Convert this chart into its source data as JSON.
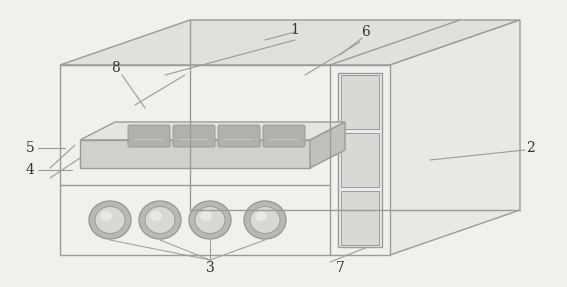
{
  "bg_color": "#f0f0ec",
  "line_color": "#9a9a9a",
  "line_width": 1.0,
  "face_color": "#f0f0ec",
  "top_color": "#e0e0dc",
  "right_color": "#e8e8e4",
  "panel_color": "#ebebeb",
  "shelf_color": "#d8d8d4",
  "tray_top_color": "#e4e4e0",
  "tray_front_color": "#d0d0cc",
  "tray_right_color": "#c0c0bc",
  "dish_color": "#b0b0ac",
  "knob_outer_color": "#c0c0bc",
  "knob_inner_color": "#d8d8d4",
  "figsize": [
    5.67,
    2.87
  ],
  "dpi": 100
}
